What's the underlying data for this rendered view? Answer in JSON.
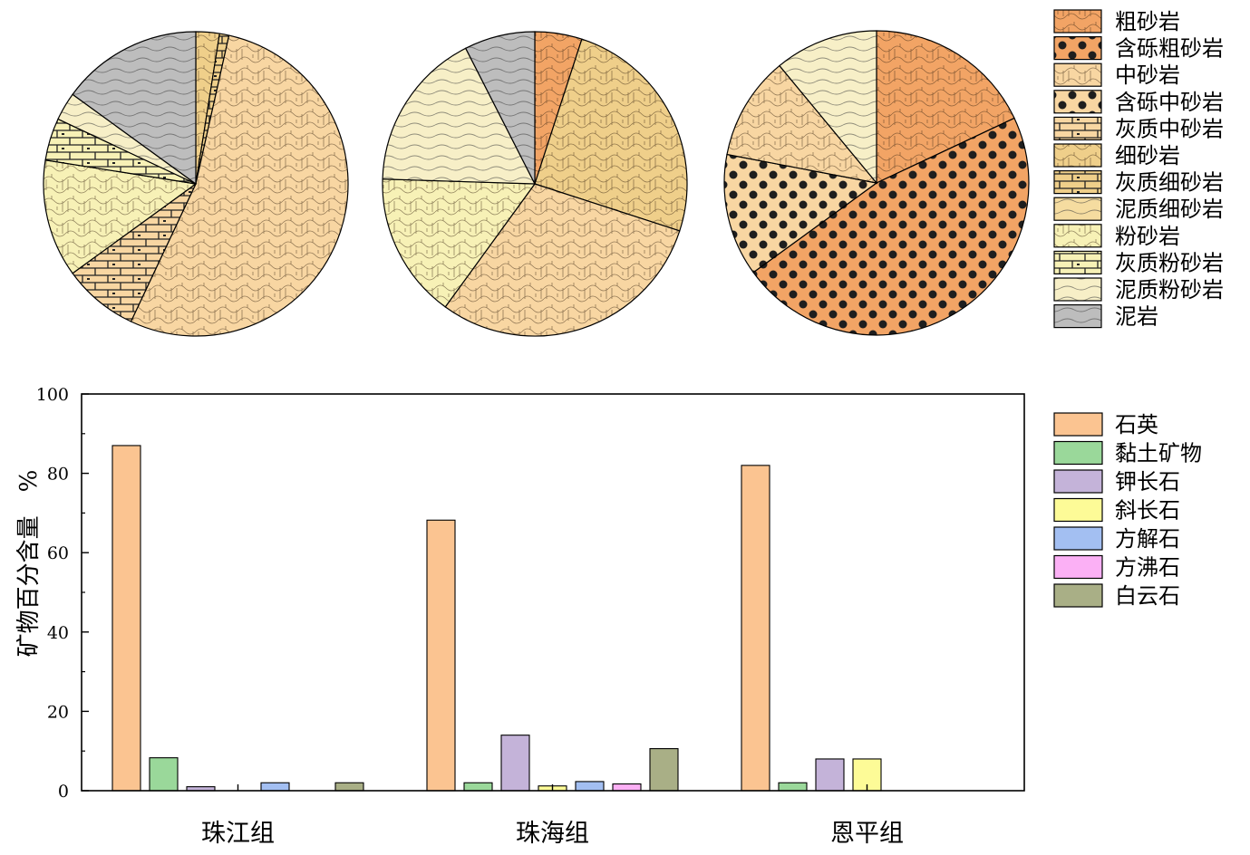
{
  "colors": {
    "粗砂岩": "#f2a465",
    "含砾粗砂岩": "#f2a465",
    "中砂岩": "#f8d6a2",
    "含砾中砂岩": "#f8d6a2",
    "灰质中砂岩": "#f8d6a2",
    "细砂岩": "#efcf8a",
    "灰质细砂岩": "#efcf8a",
    "泥质细砂岩": "#f5dca0",
    "粉砂岩": "#f7f1b6",
    "灰质粉砂岩": "#f7f1b6",
    "泥质粉砂岩": "#f7efc7",
    "泥岩": "#bdbdbd",
    "石英": "#fbc491",
    "黏土矿物": "#9ad89a",
    "钾长石": "#c4b3d9",
    "斜长石": "#fdfb97",
    "方解石": "#a3bff2",
    "方沸石": "#fbb0f5",
    "白云石": "#a9af86"
  },
  "lithology_legend": [
    "粗砂岩",
    "含砾粗砂岩",
    "中砂岩",
    "含砾中砂岩",
    "灰质中砂岩",
    "细砂岩",
    "灰质细砂岩",
    "泥质细砂岩",
    "粉砂岩",
    "灰质粉砂岩",
    "泥质粉砂岩",
    "泥岩"
  ],
  "mineral_legend": [
    "石英",
    "黏土矿物",
    "钾长石",
    "斜长石",
    "方解石",
    "方沸石",
    "白云石"
  ],
  "chart_data": [
    {
      "type": "pie",
      "slices": [
        {
          "label": "细砂岩",
          "value": 2.5
        },
        {
          "label": "灰质细砂岩",
          "value": 1.0
        },
        {
          "label": "中砂岩",
          "value": 53.5
        },
        {
          "label": "灰质中砂岩",
          "value": 8.0
        },
        {
          "label": "粉砂岩",
          "value": 12.5
        },
        {
          "label": "灰质粉砂岩",
          "value": 4.5
        },
        {
          "label": "泥质粉砂岩",
          "value": 3.0
        },
        {
          "label": "泥岩",
          "value": 15.0
        }
      ]
    },
    {
      "type": "pie",
      "slices": [
        {
          "label": "粗砂岩",
          "value": 5.0
        },
        {
          "label": "细砂岩",
          "value": 25.0
        },
        {
          "label": "中砂岩",
          "value": 30.0
        },
        {
          "label": "粉砂岩",
          "value": 15.5
        },
        {
          "label": "泥质粉砂岩",
          "value": 17.0
        },
        {
          "label": "泥岩",
          "value": 7.5
        }
      ]
    },
    {
      "type": "pie",
      "slices": [
        {
          "label": "粗砂岩",
          "value": 18.0
        },
        {
          "label": "含砾粗砂岩",
          "value": 47.0
        },
        {
          "label": "含砾中砂岩",
          "value": 13.0
        },
        {
          "label": "中砂岩",
          "value": 11.0
        },
        {
          "label": "泥质粉砂岩",
          "value": 11.0
        }
      ]
    },
    {
      "type": "bar",
      "categories": [
        "珠江组",
        "珠海组",
        "恩平组"
      ],
      "ylabel": "矿物百分含量　%",
      "ylim": [
        0,
        100
      ],
      "yticks": [
        0,
        20,
        40,
        60,
        80,
        100
      ],
      "series": [
        {
          "name": "石英",
          "values": [
            87,
            68.2,
            82
          ]
        },
        {
          "name": "黏土矿物",
          "values": [
            8.3,
            2.0,
            2.0
          ]
        },
        {
          "name": "钾长石",
          "values": [
            1.0,
            14.0,
            8.0
          ]
        },
        {
          "name": "斜长石",
          "values": [
            0,
            1.2,
            8.0
          ]
        },
        {
          "name": "方解石",
          "values": [
            2.0,
            2.3,
            0
          ]
        },
        {
          "name": "方沸石",
          "values": [
            0,
            1.7,
            0
          ]
        },
        {
          "name": "白云石",
          "values": [
            2.0,
            10.6,
            0
          ]
        }
      ]
    }
  ]
}
